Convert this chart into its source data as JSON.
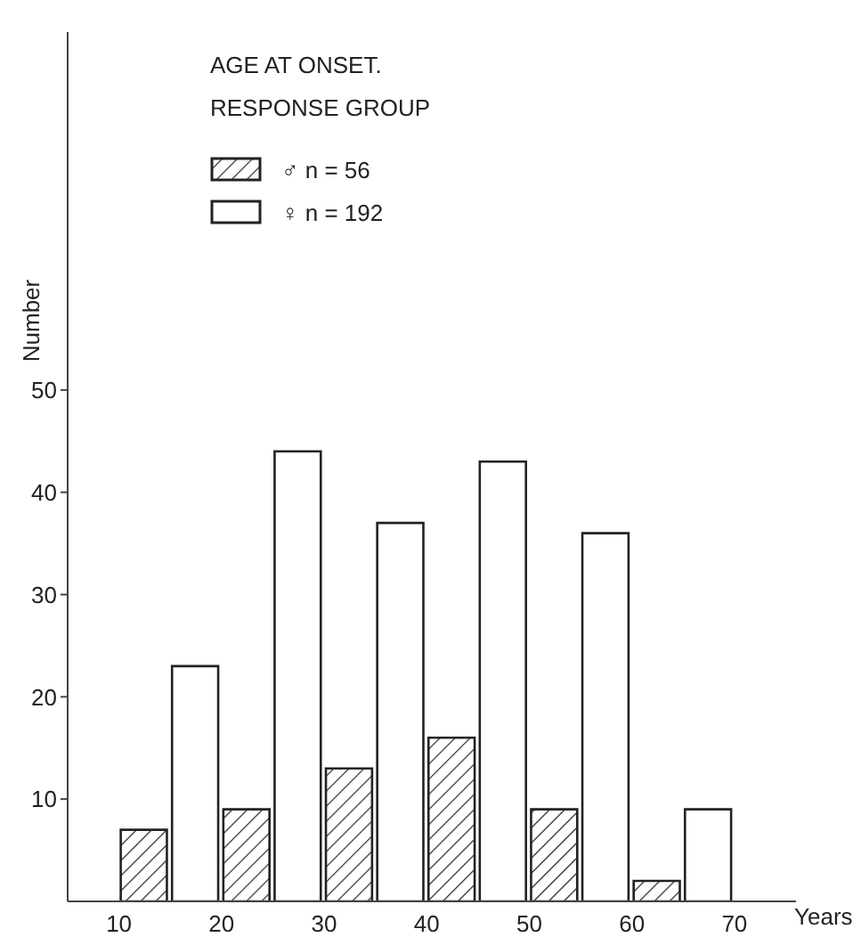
{
  "chart_data": {
    "type": "bar",
    "title": "AGE AT ONSET.\nRESPONSE GROUP",
    "xlabel": "Years",
    "ylabel": "Number",
    "series": [
      {
        "name": "♂ n = 56",
        "color": "#222222",
        "x": [
          12.5,
          22.5,
          32.5,
          42.5,
          52.5,
          62.5
        ],
        "values": [
          7,
          9,
          13,
          16,
          9,
          2
        ]
      },
      {
        "name": "♀ n = 192",
        "color": "#ffffff",
        "x": [
          17.5,
          27.5,
          37.5,
          47.5,
          57.5,
          67.5
        ],
        "values": [
          23,
          44,
          37,
          43,
          36,
          9
        ]
      }
    ],
    "xlim": [
      5,
      76
    ],
    "xticks": [
      10,
      20,
      30,
      40,
      50,
      60,
      70
    ],
    "ylim": [
      0,
      85
    ],
    "yticks": [
      10,
      20,
      30,
      40,
      50
    ],
    "grid": false,
    "legend": "top left"
  }
}
